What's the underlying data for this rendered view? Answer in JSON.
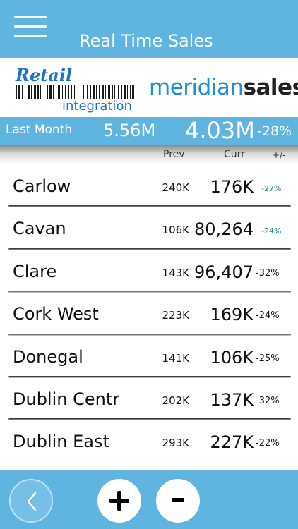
{
  "header": {
    "title": "Real Time Sales",
    "menu_icon": "hamburger-menu-icon"
  },
  "brand": {
    "retail_word": "Retail",
    "integration_word": "integration",
    "meridian_light": "meridian",
    "meridian_strong": "sales"
  },
  "summary": {
    "label": "Last Month",
    "prev": "5.56M",
    "curr": "4.03M",
    "pct": "-28%"
  },
  "columns": {
    "prev": "Prev",
    "curr": "Curr",
    "change": "+/-"
  },
  "rows": [
    {
      "name": "Carlow",
      "prev": "240K",
      "curr": "176K",
      "pct": "-27%",
      "pct_style": "teal"
    },
    {
      "name": "Cavan",
      "prev": "106K",
      "curr": "80,264",
      "pct": "-24%",
      "pct_style": "teal"
    },
    {
      "name": "Clare",
      "prev": "143K",
      "curr": "96,407",
      "pct": "-32%",
      "pct_style": "dark"
    },
    {
      "name": "Cork West",
      "prev": "223K",
      "curr": "169K",
      "pct": "-24%",
      "pct_style": "dark"
    },
    {
      "name": "Donegal",
      "prev": "141K",
      "curr": "106K",
      "pct": "-25%",
      "pct_style": "dark"
    },
    {
      "name": "Dublin Centr",
      "prev": "202K",
      "curr": "137K",
      "pct": "-32%",
      "pct_style": "dark"
    },
    {
      "name": "Dublin East",
      "prev": "293K",
      "curr": "227K",
      "pct": "-22%",
      "pct_style": "dark"
    }
  ],
  "footer": {
    "back_icon": "chevron-left-icon",
    "plus_icon": "plus-icon",
    "minus_icon": "minus-icon"
  },
  "colors": {
    "accent": "#5fb4e0",
    "brand_blue": "#1e74c7",
    "teal_pct": "#1f8a8a"
  }
}
